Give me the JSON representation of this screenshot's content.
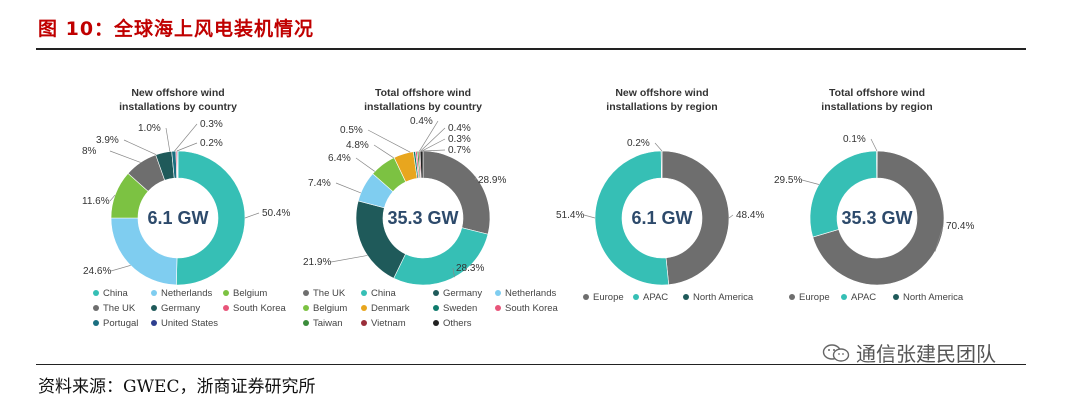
{
  "header": {
    "figure_title": "图 10：全球海上风电装机情况"
  },
  "footer": {
    "source": "资料来源：GWEC，浙商证券研究所",
    "watermark": "通信张建民团队"
  },
  "colors": {
    "China": "#36bfb5",
    "The UK": "#6e6e6e",
    "Netherlands": "#7fcdf0",
    "Belgium": "#7cc242",
    "Germany": "#1f5a5a",
    "South Korea": "#e8557a",
    "Portugal": "#1b6f80",
    "United States": "#2e3f8f",
    "Denmark": "#e8a61e",
    "Sweden": "#0f7b6c",
    "Taiwan": "#3b8c3b",
    "Vietnam": "#9a2e3a",
    "Others": "#222222",
    "Europe": "#6e6e6e",
    "APAC": "#36bfb5",
    "North America": "#1f5a5a"
  },
  "chart_data": [
    {
      "type": "pie",
      "title": "New offshore wind installations by country",
      "center_label": "6.1 GW",
      "slices": [
        {
          "name": "China",
          "value": 50.4,
          "label": "50.4%"
        },
        {
          "name": "Netherlands",
          "value": 24.6,
          "label": "24.6%"
        },
        {
          "name": "Belgium",
          "value": 11.6,
          "label": "11.6%"
        },
        {
          "name": "The UK",
          "value": 8,
          "label": "8%"
        },
        {
          "name": "Germany",
          "value": 3.9,
          "label": "3.9%"
        },
        {
          "name": "Portugal",
          "value": 1.0,
          "label": "1.0%"
        },
        {
          "name": "South Korea",
          "value": 0.3,
          "label": "0.3%"
        },
        {
          "name": "United States",
          "value": 0.2,
          "label": "0.2%"
        }
      ],
      "legend": [
        "China",
        "Netherlands",
        "Belgium",
        "The UK",
        "Germany",
        "South Korea",
        "Portugal",
        "United States"
      ]
    },
    {
      "type": "pie",
      "title": "Total offshore wind installations by country",
      "center_label": "35.3 GW",
      "slices": [
        {
          "name": "The UK",
          "value": 28.9,
          "label": "28.9%"
        },
        {
          "name": "China",
          "value": 28.3,
          "label": "28.3%"
        },
        {
          "name": "Germany",
          "value": 21.9,
          "label": "21.9%"
        },
        {
          "name": "Netherlands",
          "value": 7.4,
          "label": "7.4%"
        },
        {
          "name": "Belgium",
          "value": 6.4,
          "label": "6.4%"
        },
        {
          "name": "Denmark",
          "value": 4.8,
          "label": "4.8%"
        },
        {
          "name": "Sweden",
          "value": 0.5,
          "label": "0.5%"
        },
        {
          "name": "South Korea",
          "value": 0.4,
          "label": "0.4%"
        },
        {
          "name": "Taiwan",
          "value": 0.4,
          "label": "0.4%"
        },
        {
          "name": "Vietnam",
          "value": 0.3,
          "label": "0.3%"
        },
        {
          "name": "Others",
          "value": 0.7,
          "label": "0.7%"
        }
      ],
      "legend": [
        "The UK",
        "China",
        "Germany",
        "Netherlands",
        "Belgium",
        "Denmark",
        "Sweden",
        "South Korea",
        "Taiwan",
        "Vietnam",
        "Others"
      ]
    },
    {
      "type": "pie",
      "title": "New offshore wind installations by region",
      "center_label": "6.1 GW",
      "slices": [
        {
          "name": "Europe",
          "value": 48.4,
          "label": "48.4%"
        },
        {
          "name": "APAC",
          "value": 51.4,
          "label": "51.4%"
        },
        {
          "name": "North America",
          "value": 0.2,
          "label": "0.2%"
        }
      ],
      "legend": [
        "Europe",
        "APAC",
        "North America"
      ]
    },
    {
      "type": "pie",
      "title": "Total offshore wind installations by region",
      "center_label": "35.3 GW",
      "slices": [
        {
          "name": "Europe",
          "value": 70.4,
          "label": "70.4%"
        },
        {
          "name": "APAC",
          "value": 29.5,
          "label": "29.5%"
        },
        {
          "name": "North America",
          "value": 0.1,
          "label": "0.1%"
        }
      ],
      "legend": [
        "Europe",
        "APAC",
        "North America"
      ]
    }
  ]
}
